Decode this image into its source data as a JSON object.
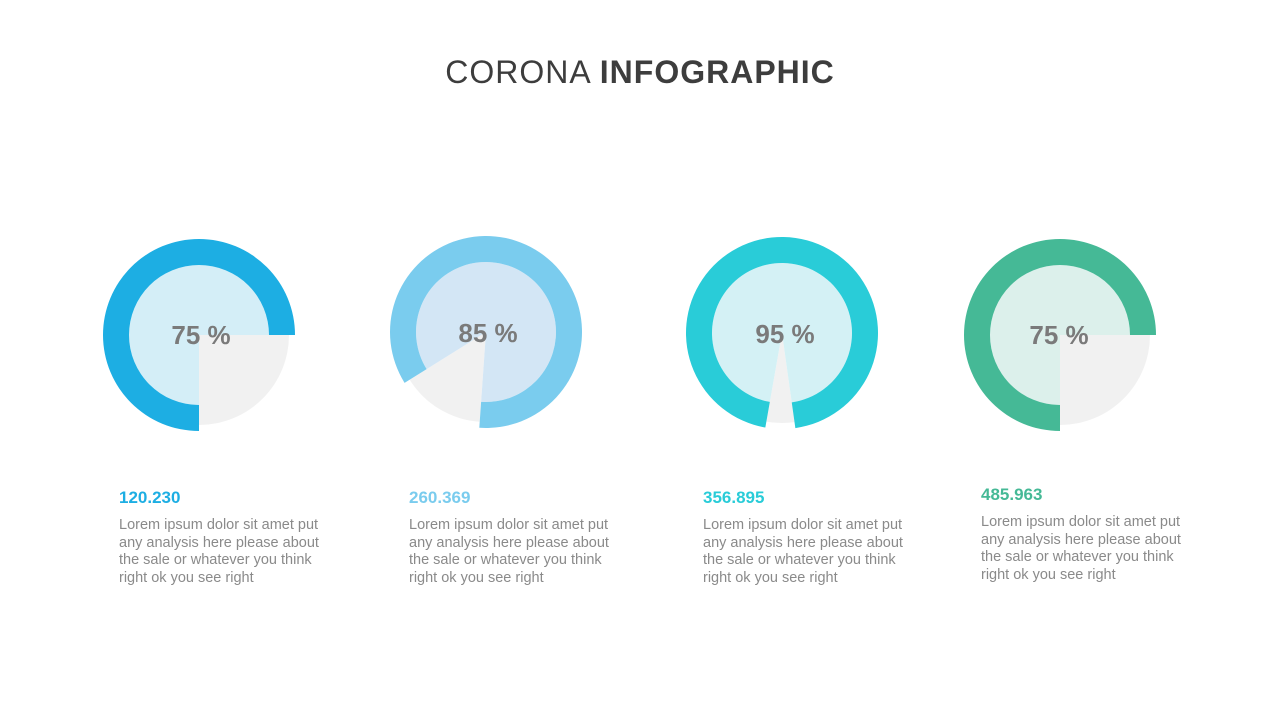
{
  "header": {
    "title_light": "CORONA",
    "title_bold": "INFOGRAPHIC"
  },
  "chart_data": {
    "type": "pie",
    "items": [
      {
        "percent": 75,
        "label": "75 %",
        "value_label": "120.230",
        "description": "Lorem ipsum dolor sit amet put any analysis here please about the sale or whatever you think right ok you see right",
        "color": "#1daee3",
        "inner_color": "#d4eef7"
      },
      {
        "percent": 85,
        "label": "85 %",
        "value_label": "260.369",
        "description": "Lorem ipsum dolor sit amet put any analysis here please about the sale or whatever you think right ok you see right",
        "color": "#7accee",
        "inner_color": "#d3e6f5"
      },
      {
        "percent": 95,
        "label": "95 %",
        "value_label": "356.895",
        "description": "Lorem ipsum dolor sit amet put any analysis here please about the sale or whatever you think right ok you see right",
        "color": "#29ccd8",
        "inner_color": "#d4f1f5"
      },
      {
        "percent": 75,
        "label": "75 %",
        "value_label": "485.963",
        "description": "Lorem ipsum dolor sit amet put any analysis here please about the sale or whatever you think right ok you see right",
        "color": "#45b996",
        "inner_color": "#dcf0eb"
      }
    ],
    "remainder_color": "#f1f1f1"
  }
}
